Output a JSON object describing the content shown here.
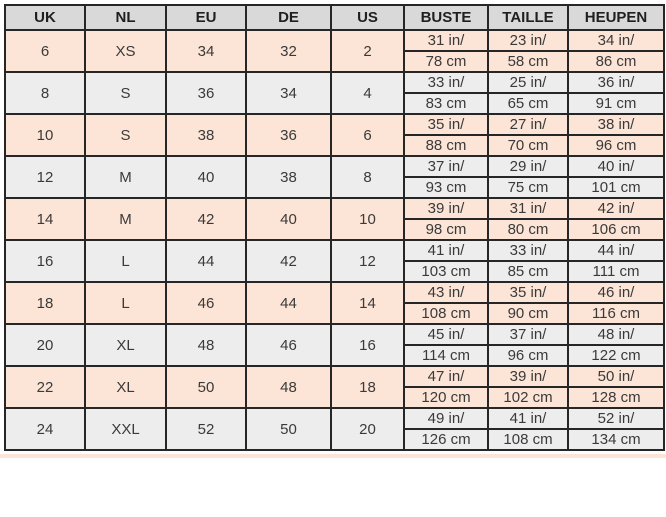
{
  "table": {
    "columns": [
      "UK",
      "NL",
      "EU",
      "DE",
      "US",
      "BUSTE",
      "TAILLE",
      "HEUPEN"
    ],
    "rows": [
      {
        "uk": "6",
        "nl": "XS",
        "eu": "34",
        "de": "32",
        "us": "2",
        "buste_in": "31 in/",
        "buste_cm": "78 cm",
        "taille_in": "23 in/",
        "taille_cm": "58 cm",
        "heupen_in": "34 in/",
        "heupen_cm": "86 cm"
      },
      {
        "uk": "8",
        "nl": "S",
        "eu": "36",
        "de": "34",
        "us": "4",
        "buste_in": "33 in/",
        "buste_cm": "83 cm",
        "taille_in": "25 in/",
        "taille_cm": "65 cm",
        "heupen_in": "36 in/",
        "heupen_cm": "91 cm"
      },
      {
        "uk": "10",
        "nl": "S",
        "eu": "38",
        "de": "36",
        "us": "6",
        "buste_in": "35 in/",
        "buste_cm": "88 cm",
        "taille_in": "27 in/",
        "taille_cm": "70 cm",
        "heupen_in": "38 in/",
        "heupen_cm": "96 cm"
      },
      {
        "uk": "12",
        "nl": "M",
        "eu": "40",
        "de": "38",
        "us": "8",
        "buste_in": "37 in/",
        "buste_cm": "93 cm",
        "taille_in": "29 in/",
        "taille_cm": "75 cm",
        "heupen_in": "40 in/",
        "heupen_cm": "101 cm"
      },
      {
        "uk": "14",
        "nl": "M",
        "eu": "42",
        "de": "40",
        "us": "10",
        "buste_in": "39 in/",
        "buste_cm": "98 cm",
        "taille_in": "31 in/",
        "taille_cm": "80 cm",
        "heupen_in": "42 in/",
        "heupen_cm": "106 cm"
      },
      {
        "uk": "16",
        "nl": "L",
        "eu": "44",
        "de": "42",
        "us": "12",
        "buste_in": "41 in/",
        "buste_cm": "103 cm",
        "taille_in": "33 in/",
        "taille_cm": "85 cm",
        "heupen_in": "44 in/",
        "heupen_cm": "111 cm"
      },
      {
        "uk": "18",
        "nl": "L",
        "eu": "46",
        "de": "44",
        "us": "14",
        "buste_in": "43 in/",
        "buste_cm": "108 cm",
        "taille_in": "35 in/",
        "taille_cm": "90 cm",
        "heupen_in": "46 in/",
        "heupen_cm": "116 cm"
      },
      {
        "uk": "20",
        "nl": "XL",
        "eu": "48",
        "de": "46",
        "us": "16",
        "buste_in": "45 in/",
        "buste_cm": "114 cm",
        "taille_in": "37 in/",
        "taille_cm": "96 cm",
        "heupen_in": "48 in/",
        "heupen_cm": "122 cm"
      },
      {
        "uk": "22",
        "nl": "XL",
        "eu": "50",
        "de": "48",
        "us": "18",
        "buste_in": "47 in/",
        "buste_cm": "120 cm",
        "taille_in": "39 in/",
        "taille_cm": "102 cm",
        "heupen_in": "50 in/",
        "heupen_cm": "128 cm"
      },
      {
        "uk": "24",
        "nl": "XXL",
        "eu": "52",
        "de": "50",
        "us": "20",
        "buste_in": "49 in/",
        "buste_cm": "126 cm",
        "taille_in": "41 in/",
        "taille_cm": "108 cm",
        "heupen_in": "52 in/",
        "heupen_cm": "134 cm"
      }
    ]
  },
  "colors": {
    "row_peach": "#fce4d6",
    "row_gray": "#ededed",
    "header_gray": "#d9d9d9",
    "border_dark": "#262626",
    "border_light": "#595959"
  }
}
